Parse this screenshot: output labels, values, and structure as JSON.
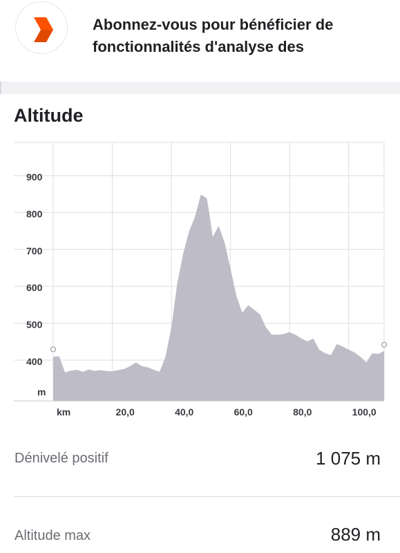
{
  "banner": {
    "logo_icon": "strava-chevron-icon",
    "logo_color": "#fc5200",
    "text": "Abonnez-vous pour bénéficier de fonctionnalités d'analyse des"
  },
  "section": {
    "title": "Altitude"
  },
  "chart_data": {
    "type": "area",
    "title": "",
    "xlabel": "km",
    "ylabel": "m",
    "x_ticks": [
      "20,0",
      "40,0",
      "60,0",
      "80,0",
      "100,0"
    ],
    "y_ticks": [
      "400",
      "500",
      "600",
      "700",
      "800",
      "900"
    ],
    "xlim": [
      0,
      112
    ],
    "ylim": [
      300,
      1000
    ],
    "grid": true,
    "fill_color": "#bdbcc7",
    "series": [
      {
        "x": [
          0,
          2,
          4,
          6,
          8,
          10,
          12,
          14,
          16,
          18,
          20,
          22,
          24,
          26,
          28,
          30,
          32,
          34,
          36,
          38,
          40,
          42,
          44,
          46,
          48,
          50,
          52,
          53,
          54,
          56,
          58,
          60,
          62,
          64,
          66,
          68,
          70,
          72,
          74,
          76,
          78,
          80,
          82,
          84,
          86,
          88,
          90,
          92,
          94,
          96,
          98,
          100,
          102,
          104,
          106,
          108,
          110,
          112
        ],
        "y": [
          420,
          422,
          378,
          383,
          385,
          380,
          386,
          382,
          384,
          382,
          381,
          384,
          387,
          395,
          405,
          395,
          392,
          385,
          380,
          420,
          500,
          620,
          700,
          760,
          800,
          860,
          850,
          800,
          745,
          775,
          730,
          660,
          585,
          540,
          560,
          548,
          535,
          500,
          480,
          480,
          482,
          487,
          480,
          470,
          462,
          470,
          440,
          430,
          425,
          455,
          448,
          440,
          432,
          420,
          405,
          430,
          428,
          436
        ]
      }
    ]
  },
  "stats": [
    {
      "label": "Dénivelé positif",
      "value": "1 075 m"
    },
    {
      "label": "Altitude max",
      "value": "889 m"
    }
  ]
}
